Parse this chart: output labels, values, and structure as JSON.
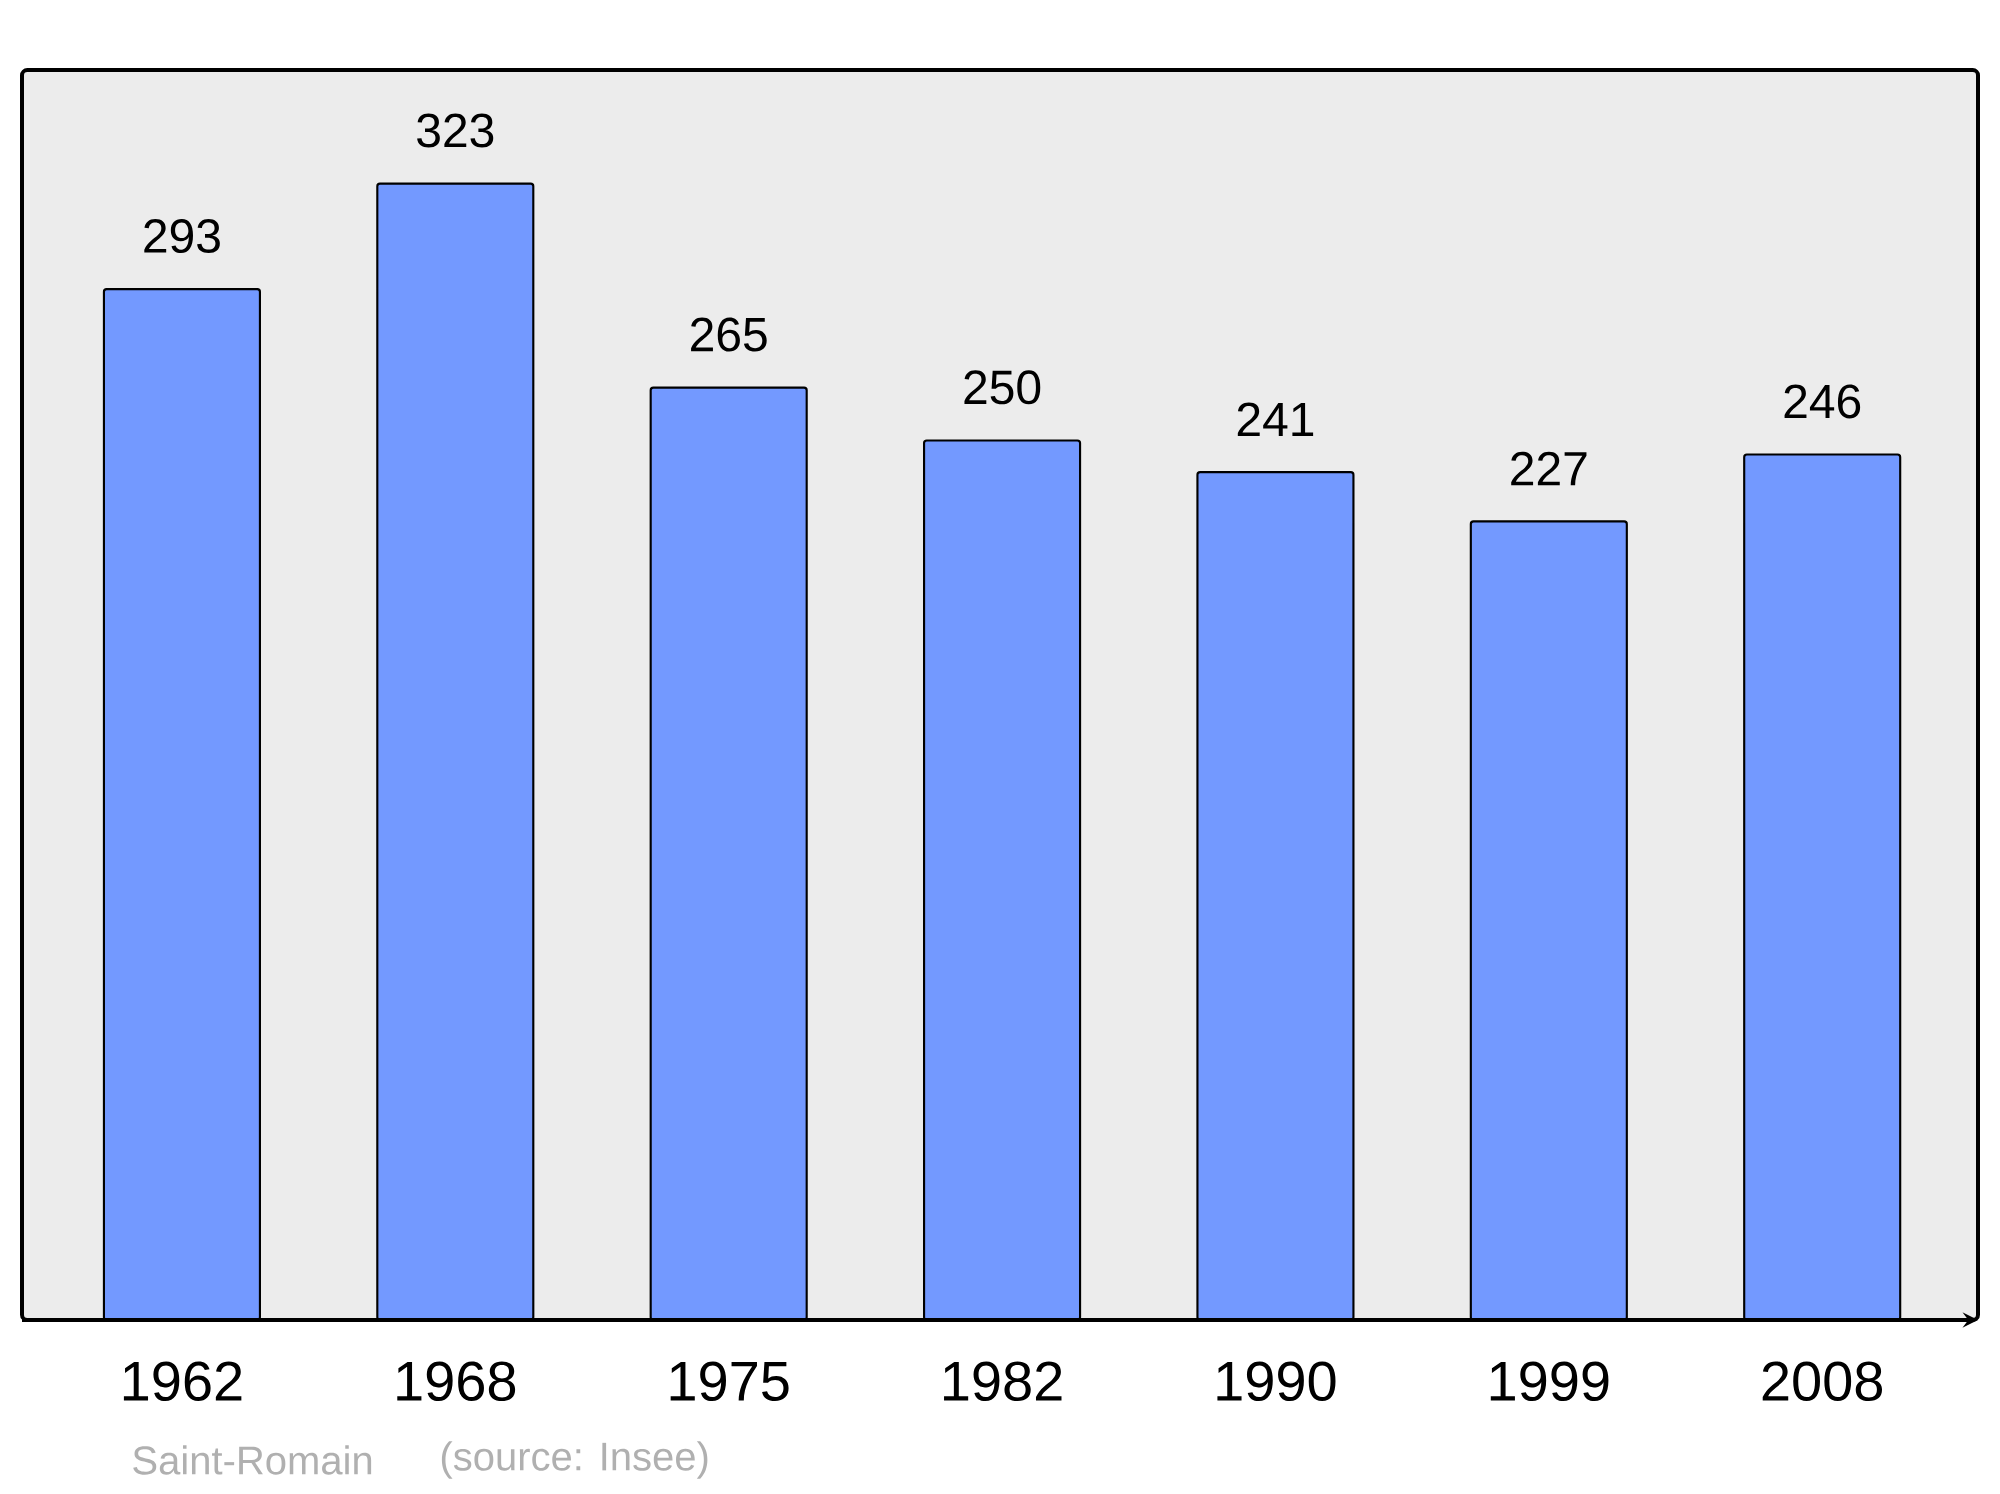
{
  "chart_data": {
    "type": "bar",
    "categories": [
      "1962",
      "1968",
      "1975",
      "1982",
      "1990",
      "1999",
      "2008"
    ],
    "values": [
      293,
      323,
      265,
      250,
      241,
      227,
      246
    ],
    "color": "#7399ff",
    "data_labels": true,
    "annotations": [
      "Saint-Romain",
      "(source: Insee)"
    ]
  }
}
